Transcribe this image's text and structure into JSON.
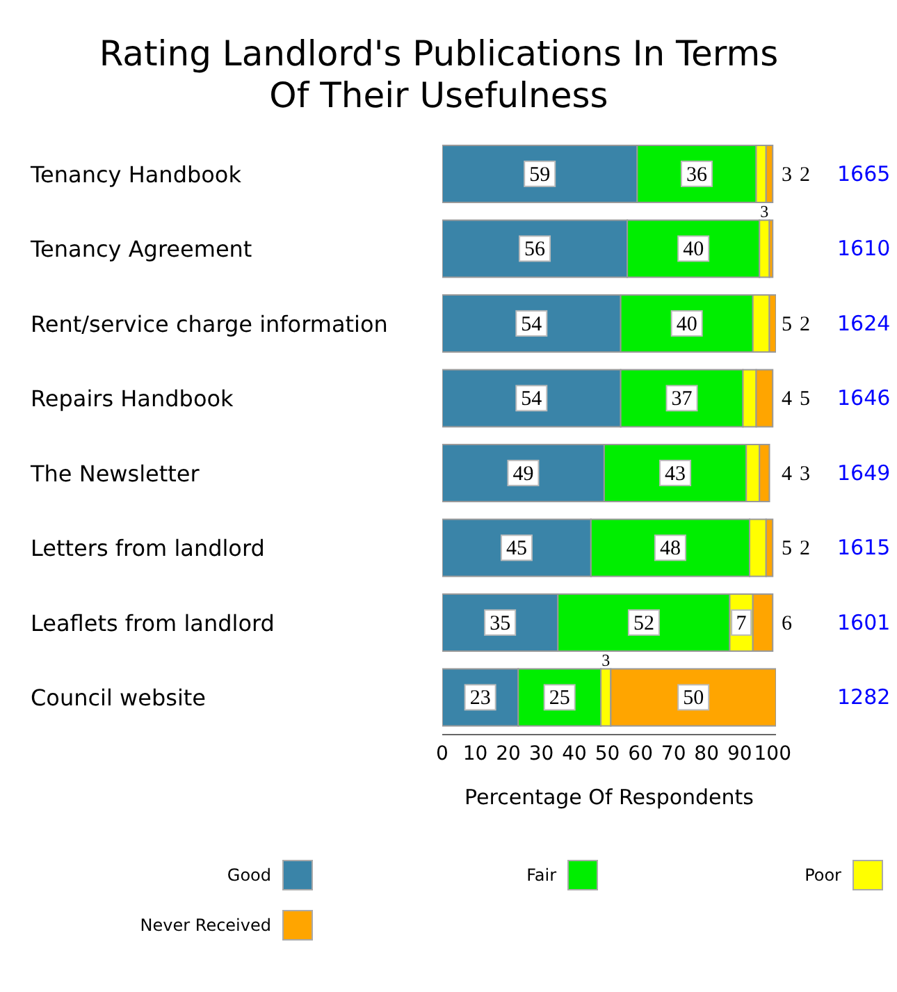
{
  "chart_data": {
    "type": "bar",
    "orientation": "horizontal",
    "stacked": true,
    "title": "Rating Landlord's Publications In Terms Of Their Usefulness",
    "xlabel": "Percentage Of Respondents",
    "categories": [
      "Tenancy Handbook",
      "Tenancy Agreement",
      "Rent/service charge information",
      "Repairs Handbook",
      "The Newsletter",
      "Letters from landlord",
      "Leaflets from landlord",
      "Council website"
    ],
    "series": [
      {
        "name": "Good",
        "color": "#3a84a8",
        "values": [
          59,
          56,
          54,
          54,
          49,
          45,
          35,
          23
        ],
        "value_labels": [
          "59",
          "56",
          "54",
          "54",
          "49",
          "45",
          "35",
          "23"
        ]
      },
      {
        "name": "Fair",
        "color": "#00ee00",
        "values": [
          36,
          40,
          40,
          37,
          43,
          48,
          52,
          25
        ],
        "value_labels": [
          "36",
          "40",
          "40",
          "37",
          "43",
          "48",
          "52",
          "25"
        ]
      },
      {
        "name": "Poor",
        "color": "#ffff00",
        "values": [
          3,
          3,
          5,
          4,
          4,
          5,
          7,
          3
        ],
        "value_labels": [
          "3",
          "3",
          "5",
          "4",
          "4",
          "5",
          "7",
          "3"
        ]
      },
      {
        "name": "Never Received",
        "color": "#ffa500",
        "values": [
          2,
          1,
          2,
          5,
          3,
          2,
          6,
          50
        ],
        "value_labels": [
          "2",
          null,
          "2",
          "5",
          "3",
          "2",
          "6",
          "50"
        ]
      }
    ],
    "xlim": [
      0,
      101
    ],
    "xticks": [
      0,
      10,
      20,
      30,
      40,
      50,
      60,
      70,
      80,
      90,
      100
    ],
    "grid": false,
    "legend": "bottom",
    "annotations": [
      "1665",
      "1610",
      "1624",
      "1646",
      "1649",
      "1615",
      "1601",
      "1282"
    ]
  }
}
